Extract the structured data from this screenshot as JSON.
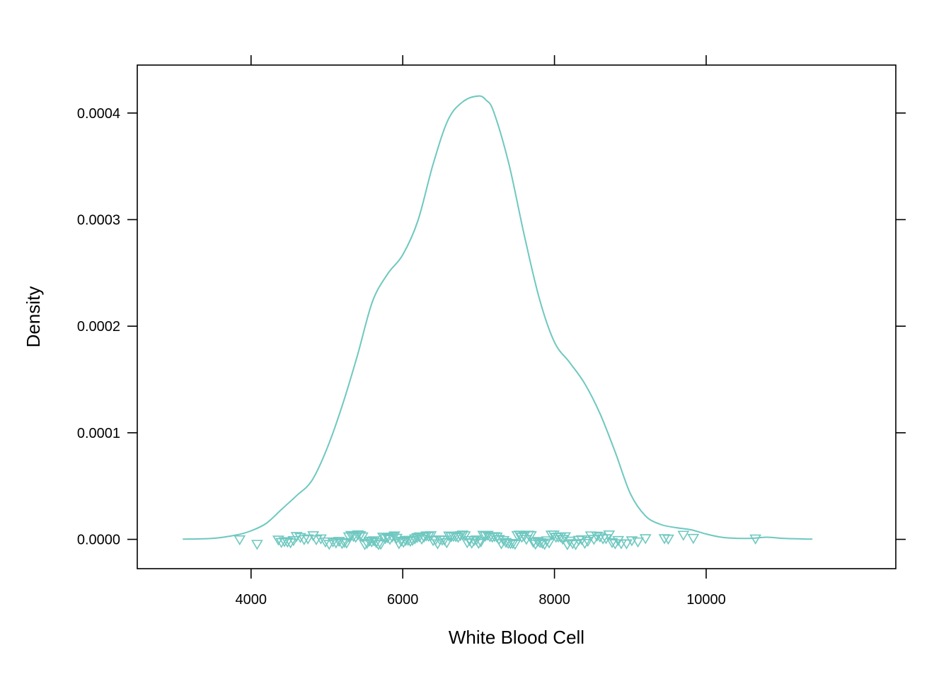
{
  "chart_data": {
    "type": "line",
    "subtype": "density",
    "title": "",
    "xlabel": "White Blood Cell",
    "ylabel": "Density",
    "xlim": [
      2500,
      12500
    ],
    "ylim": [
      -2.75e-05,
      0.000445
    ],
    "x_ticks": [
      4000,
      6000,
      8000,
      10000
    ],
    "x_tick_labels": [
      "4000",
      "6000",
      "8000",
      "10000"
    ],
    "y_ticks": [
      0,
      0.0001,
      0.0002,
      0.0003,
      0.0004
    ],
    "y_tick_labels": [
      "0.0000",
      "0.0001",
      "0.0002",
      "0.0003",
      "0.0004"
    ],
    "grid": false,
    "legend": "none",
    "color": "#6ec8c0",
    "series": [
      {
        "x": [
          3100,
          3500,
          3800,
          4000,
          4200,
          4400,
          4600,
          4800,
          5000,
          5200,
          5400,
          5600,
          5800,
          6000,
          6200,
          6400,
          6600,
          6800,
          7000,
          7100,
          7200,
          7400,
          7600,
          7800,
          8000,
          8200,
          8400,
          8600,
          8800,
          9000,
          9200,
          9400,
          9600,
          9800,
          10000,
          10200,
          10400,
          10600,
          10800,
          11000,
          11200,
          11400
        ],
        "y": [
          2e-07,
          1e-06,
          4e-06,
          8e-06,
          1.5e-05,
          2.8e-05,
          4.1e-05,
          5.5e-05,
          8.5e-05,
          0.000125,
          0.000172,
          0.000223,
          0.000249,
          0.000267,
          0.000299,
          0.000352,
          0.000394,
          0.000411,
          0.000416,
          0.000412,
          0.000401,
          0.000352,
          0.000286,
          0.000226,
          0.000185,
          0.000166,
          0.000146,
          0.000118,
          8.2e-05,
          4.3e-05,
          2.2e-05,
          1.4e-05,
          1.1e-05,
          9e-06,
          5e-06,
          2e-06,
          1e-06,
          1e-06,
          2e-06,
          1e-06,
          5e-07,
          2e-07
        ]
      }
    ],
    "rug_points": [
      3850,
      4080,
      4360,
      4400,
      4440,
      4480,
      4520,
      4560,
      4600,
      4650,
      4700,
      4750,
      4820,
      4860,
      4920,
      4980,
      5030,
      5080,
      5120,
      5160,
      5200,
      5230,
      5260,
      5290,
      5320,
      5350,
      5380,
      5410,
      5440,
      5470,
      5500,
      5530,
      5560,
      5590,
      5620,
      5650,
      5680,
      5710,
      5740,
      5770,
      5800,
      5830,
      5860,
      5890,
      5920,
      5950,
      5980,
      6010,
      6040,
      6070,
      6100,
      6130,
      6160,
      6190,
      6220,
      6250,
      6280,
      6310,
      6340,
      6370,
      6400,
      6430,
      6460,
      6490,
      6520,
      6550,
      6580,
      6610,
      6640,
      6670,
      6700,
      6730,
      6760,
      6790,
      6820,
      6850,
      6880,
      6910,
      6940,
      6970,
      7000,
      7030,
      7060,
      7090,
      7120,
      7150,
      7180,
      7210,
      7240,
      7270,
      7300,
      7330,
      7360,
      7390,
      7420,
      7450,
      7480,
      7510,
      7540,
      7570,
      7600,
      7630,
      7660,
      7690,
      7720,
      7750,
      7780,
      7810,
      7840,
      7870,
      7900,
      7930,
      7960,
      7990,
      8020,
      8050,
      8080,
      8110,
      8140,
      8170,
      8200,
      8240,
      8280,
      8320,
      8360,
      8400,
      8440,
      8480,
      8520,
      8560,
      8600,
      8640,
      8680,
      8720,
      8760,
      8800,
      8840,
      8880,
      8950,
      9020,
      9100,
      9200,
      9450,
      9500,
      9700,
      9830,
      10650
    ],
    "rug_marker": "triangle-down"
  }
}
